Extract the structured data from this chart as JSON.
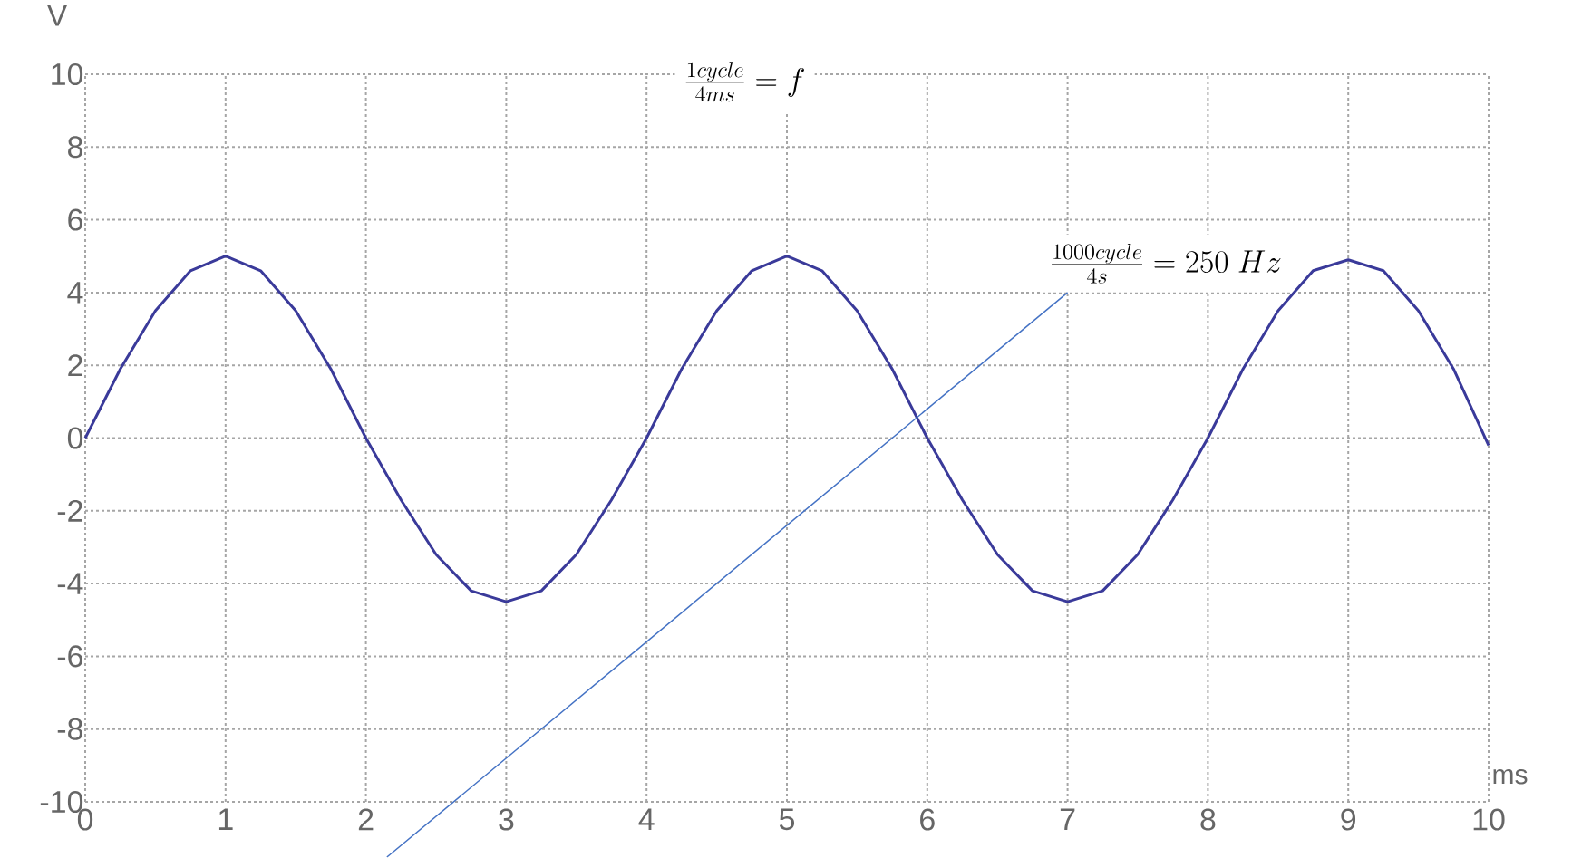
{
  "chart_data": {
    "type": "line",
    "ylabel": "V",
    "xlabel": "ms",
    "x": [
      0,
      0.25,
      0.5,
      0.75,
      1,
      1.25,
      1.5,
      1.75,
      2,
      2.25,
      2.5,
      2.75,
      3,
      3.25,
      3.5,
      3.75,
      4,
      4.25,
      4.5,
      4.75,
      5,
      5.25,
      5.5,
      5.75,
      6,
      6.25,
      6.5,
      6.75,
      7,
      7.25,
      7.5,
      7.75,
      8,
      8.25,
      8.5,
      8.75,
      9,
      9.25,
      9.5,
      9.75,
      10
    ],
    "series": [
      {
        "color": "#3a3a9a",
        "values": [
          0,
          1.9,
          3.5,
          4.6,
          5,
          4.6,
          3.5,
          1.9,
          0,
          -1.7,
          -3.2,
          -4.2,
          -4.5,
          -4.2,
          -3.2,
          -1.7,
          0,
          1.9,
          3.5,
          4.6,
          5,
          4.6,
          3.5,
          1.9,
          0,
          -1.7,
          -3.2,
          -4.2,
          -4.5,
          -4.2,
          -3.2,
          -1.7,
          0,
          1.9,
          3.5,
          4.6,
          4.9,
          4.6,
          3.5,
          1.9,
          -0.2
        ]
      }
    ],
    "xlim": [
      0,
      10
    ],
    "ylim": [
      -10,
      10
    ],
    "xticks": [
      0,
      1,
      2,
      3,
      4,
      5,
      6,
      7,
      8,
      9,
      10
    ],
    "yticks": [
      -10,
      -8,
      -6,
      -4,
      -2,
      0,
      2,
      4,
      6,
      8,
      10
    ],
    "grid": true,
    "marker": "none",
    "line_style": "solid",
    "annotations": [
      "\\frac{1cycle}{4ms} = f",
      "\\frac{1000cycle}{4s} = 250\\ Hz"
    ]
  }
}
